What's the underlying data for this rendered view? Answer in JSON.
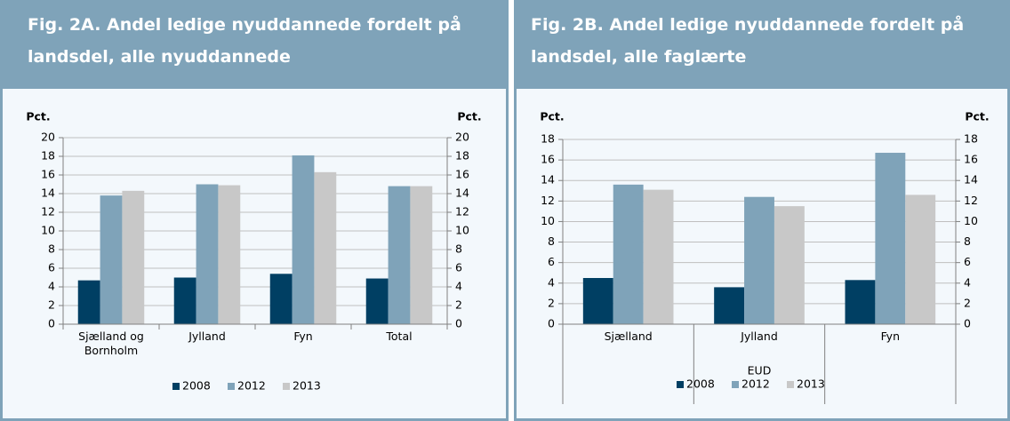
{
  "chart_data": [
    {
      "type": "bar",
      "title": "Fig. 2A. Andel ledige nyuddannede fordelt på landsdel, alle nyuddannede",
      "y_label": "Pct.",
      "y2_label": "Pct.",
      "categories": [
        "Sjælland og Bornholm",
        "Jylland",
        "Fyn",
        "Total"
      ],
      "series": [
        {
          "name": "2008",
          "color": "#003f63",
          "values": [
            4.7,
            5.0,
            5.4,
            4.9
          ]
        },
        {
          "name": "2012",
          "color": "#7fa3b9",
          "values": [
            13.8,
            15.0,
            18.1,
            14.8
          ]
        },
        {
          "name": "2013",
          "color": "#c8c8c8",
          "values": [
            14.3,
            14.9,
            16.3,
            14.8
          ]
        }
      ],
      "ylim": [
        0,
        20
      ],
      "yticks": [
        0,
        2,
        4,
        6,
        8,
        10,
        12,
        14,
        16,
        18,
        20
      ],
      "y2lim": [
        0,
        20
      ],
      "y2ticks": [
        0,
        2,
        4,
        6,
        8,
        10,
        12,
        14,
        16,
        18,
        20
      ],
      "grid": true,
      "legend": "bottom"
    },
    {
      "type": "bar",
      "title": "Fig. 2B. Andel ledige nyuddannede fordelt på landsdel, alle faglærte",
      "y_label": "Pct.",
      "y2_label": "Pct.",
      "group_label": "EUD",
      "categories": [
        "Sjælland",
        "Jylland",
        "Fyn"
      ],
      "series": [
        {
          "name": "2008",
          "color": "#003f63",
          "values": [
            4.5,
            3.6,
            4.3
          ]
        },
        {
          "name": "2012",
          "color": "#7fa3b9",
          "values": [
            13.6,
            12.4,
            16.7
          ]
        },
        {
          "name": "2013",
          "color": "#c8c8c8",
          "values": [
            13.1,
            11.5,
            12.6
          ]
        }
      ],
      "ylim": [
        0,
        18
      ],
      "yticks": [
        0,
        2,
        4,
        6,
        8,
        10,
        12,
        14,
        16,
        18
      ],
      "y2lim": [
        0,
        18
      ],
      "y2ticks": [
        0,
        2,
        4,
        6,
        8,
        10,
        12,
        14,
        16,
        18
      ],
      "grid": true,
      "legend": "bottom"
    }
  ]
}
